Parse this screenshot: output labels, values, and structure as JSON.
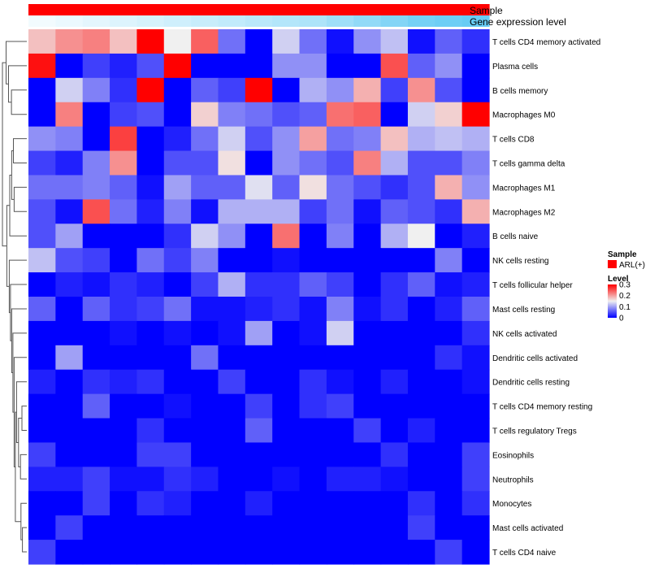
{
  "chart_data": {
    "type": "heatmap",
    "title": "",
    "annotation_tracks": [
      "Sample",
      "Gene expression level"
    ],
    "sample_group": "ARL(+)",
    "sample_color": "#ff0000",
    "expression_level": [
      0.0,
      0.05,
      0.1,
      0.15,
      0.2,
      0.25,
      0.3,
      0.35,
      0.4,
      0.45,
      0.5,
      0.6,
      0.7,
      0.8,
      0.9,
      0.95,
      1.0
    ],
    "rows": [
      "T cells CD4 memory activated",
      "Plasma cells",
      "B cells memory",
      "Macrophages M0",
      "T cells CD8",
      "T cells gamma delta",
      "Macrophages M1",
      "Macrophages M2",
      "B cells naive",
      "NK cells resting",
      "T cells follicular helper",
      "Mast cells resting",
      "NK cells activated",
      "Dendritic cells activated",
      "Dendritic cells resting",
      "T cells CD4 memory resting",
      "T cells regulatory  Tregs",
      "Eosinophils",
      "Neutrophils",
      "Monocytes",
      "Mast cells activated",
      "T cells CD4 naive"
    ],
    "values": [
      [
        0.18,
        0.21,
        0.22,
        0.18,
        0.31,
        0.15,
        0.24,
        0.07,
        0.0,
        0.13,
        0.07,
        0.01,
        0.09,
        0.12,
        0.01,
        0.06,
        0.03
      ],
      [
        0.29,
        0.0,
        0.04,
        0.02,
        0.05,
        0.3,
        0.0,
        0.0,
        0.0,
        0.09,
        0.09,
        0.0,
        0.0,
        0.25,
        0.06,
        0.09,
        0.0
      ],
      [
        0.0,
        0.13,
        0.08,
        0.03,
        0.31,
        0.0,
        0.06,
        0.04,
        0.31,
        0.0,
        0.11,
        0.09,
        0.19,
        0.04,
        0.21,
        0.05,
        0.0
      ],
      [
        0.0,
        0.22,
        0.0,
        0.04,
        0.05,
        0.0,
        0.17,
        0.08,
        0.07,
        0.05,
        0.06,
        0.23,
        0.24,
        0.0,
        0.13,
        0.17,
        0.31
      ],
      [
        0.09,
        0.08,
        0.0,
        0.26,
        0.0,
        0.02,
        0.07,
        0.13,
        0.05,
        0.09,
        0.2,
        0.07,
        0.08,
        0.18,
        0.11,
        0.12,
        0.11
      ],
      [
        0.04,
        0.02,
        0.08,
        0.21,
        0.0,
        0.05,
        0.05,
        0.16,
        0.0,
        0.09,
        0.07,
        0.05,
        0.22,
        0.11,
        0.05,
        0.05,
        0.08
      ],
      [
        0.07,
        0.07,
        0.08,
        0.06,
        0.01,
        0.1,
        0.06,
        0.06,
        0.14,
        0.06,
        0.16,
        0.07,
        0.05,
        0.03,
        0.05,
        0.19,
        0.09
      ],
      [
        0.05,
        0.01,
        0.25,
        0.07,
        0.02,
        0.08,
        0.01,
        0.11,
        0.11,
        0.11,
        0.04,
        0.07,
        0.01,
        0.06,
        0.05,
        0.03,
        0.19
      ],
      [
        0.05,
        0.1,
        0.0,
        0.0,
        0.0,
        0.03,
        0.13,
        0.09,
        0.0,
        0.23,
        0.0,
        0.08,
        0.0,
        0.11,
        0.15,
        0.0,
        0.02
      ],
      [
        0.12,
        0.05,
        0.04,
        0.0,
        0.07,
        0.04,
        0.08,
        0.0,
        0.0,
        0.01,
        0.0,
        0.0,
        0.0,
        0.0,
        0.0,
        0.08,
        0.0
      ],
      [
        0.0,
        0.02,
        0.01,
        0.03,
        0.02,
        0.0,
        0.04,
        0.11,
        0.03,
        0.03,
        0.06,
        0.04,
        0.0,
        0.03,
        0.06,
        0.01,
        0.02
      ],
      [
        0.06,
        0.0,
        0.06,
        0.03,
        0.04,
        0.07,
        0.01,
        0.01,
        0.02,
        0.03,
        0.01,
        0.08,
        0.01,
        0.03,
        0.0,
        0.02,
        0.06
      ],
      [
        0.0,
        0.0,
        0.0,
        0.01,
        0.0,
        0.01,
        0.0,
        0.01,
        0.1,
        0.0,
        0.01,
        0.13,
        0.0,
        0.0,
        0.0,
        0.0,
        0.03
      ],
      [
        0.0,
        0.1,
        0.0,
        0.0,
        0.0,
        0.0,
        0.07,
        0.0,
        0.0,
        0.0,
        0.0,
        0.0,
        0.0,
        0.0,
        0.0,
        0.03,
        0.01
      ],
      [
        0.02,
        0.0,
        0.03,
        0.02,
        0.03,
        0.0,
        0.0,
        0.04,
        0.0,
        0.0,
        0.03,
        0.01,
        0.0,
        0.02,
        0.0,
        0.0,
        0.01
      ],
      [
        0.0,
        0.0,
        0.06,
        0.0,
        0.0,
        0.01,
        0.0,
        0.0,
        0.04,
        0.0,
        0.03,
        0.04,
        0.0,
        0.0,
        0.0,
        0.0,
        0.0
      ],
      [
        0.0,
        0.0,
        0.0,
        0.0,
        0.03,
        0.0,
        0.0,
        0.0,
        0.06,
        0.0,
        0.0,
        0.0,
        0.04,
        0.0,
        0.02,
        0.0,
        0.0
      ],
      [
        0.04,
        0.0,
        0.0,
        0.0,
        0.04,
        0.04,
        0.0,
        0.0,
        0.0,
        0.0,
        0.0,
        0.0,
        0.0,
        0.03,
        0.0,
        0.0,
        0.04
      ],
      [
        0.02,
        0.02,
        0.04,
        0.01,
        0.01,
        0.03,
        0.02,
        0.0,
        0.0,
        0.01,
        0.0,
        0.02,
        0.02,
        0.01,
        0.0,
        0.0,
        0.04
      ],
      [
        0.0,
        0.0,
        0.04,
        0.0,
        0.03,
        0.02,
        0.0,
        0.0,
        0.02,
        0.0,
        0.0,
        0.0,
        0.0,
        0.0,
        0.03,
        0.0,
        0.03
      ],
      [
        0.0,
        0.04,
        0.0,
        0.0,
        0.0,
        0.0,
        0.0,
        0.0,
        0.0,
        0.0,
        0.0,
        0.0,
        0.0,
        0.0,
        0.04,
        0.0,
        0.0
      ],
      [
        0.04,
        0.0,
        0.0,
        0.0,
        0.0,
        0.0,
        0.0,
        0.0,
        0.0,
        0.0,
        0.0,
        0.0,
        0.0,
        0.0,
        0.0,
        0.04,
        0.0
      ]
    ],
    "color_scale": {
      "low": "#0000ff",
      "mid": "#f0f0f0",
      "high": "#ff0000",
      "domain": [
        0,
        0.3
      ]
    },
    "expression_colors": {
      "low": "#f2fbfe",
      "high": "#67ccf4"
    },
    "legend": {
      "sample_title": "Sample",
      "sample_label": "ARL(+)",
      "level_title": "Level",
      "ticks": [
        "0.3",
        "0.2",
        "0.1",
        "0"
      ],
      "tick_values": [
        0.3,
        0.2,
        0.1,
        0.0
      ],
      "placement": "right"
    },
    "dendrogram": {
      "merges": [
        [
          -21,
          -22
        ],
        [
          -20,
          1
        ],
        [
          -16,
          -17
        ],
        [
          -18,
          -19
        ],
        [
          3,
          4
        ],
        [
          -15,
          5
        ],
        [
          2,
          6
        ],
        [
          -14,
          7
        ],
        [
          -13,
          8
        ],
        [
          -12,
          9
        ],
        [
          -11,
          10
        ],
        [
          -10,
          11
        ],
        [
          -7,
          -8
        ],
        [
          -5,
          -6
        ],
        [
          13,
          14
        ],
        [
          -9,
          15
        ],
        [
          12,
          16
        ],
        [
          -3,
          -4
        ],
        [
          -2,
          18
        ],
        [
          -1,
          19
        ],
        [
          17,
          20
        ]
      ],
      "heights": [
        0.18,
        0.24,
        0.2,
        0.26,
        0.34,
        0.42,
        0.47,
        0.52,
        0.57,
        0.62,
        0.67,
        0.72,
        0.52,
        0.55,
        0.62,
        0.7,
        0.82,
        0.63,
        0.75,
        0.85,
        1.0
      ]
    }
  }
}
